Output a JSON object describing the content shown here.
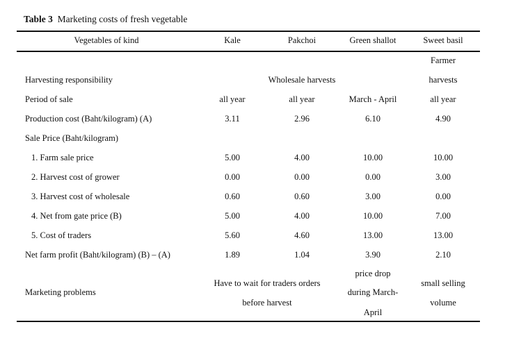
{
  "table": {
    "number": "Table 3",
    "caption": "Marketing costs of fresh vegetable",
    "header": [
      "Vegetables of kind",
      "Kale",
      "Pakchoi",
      "Green shallot",
      "Sweet basil"
    ],
    "harvesting": {
      "label": "Harvesting responsibility",
      "wholesale": "Wholesale harvests",
      "basil_line1": "Farmer",
      "basil_line2": "harvests"
    },
    "period": {
      "label": "Period of sale",
      "values": [
        "all year",
        "all year",
        "March - April",
        "all year"
      ]
    },
    "production": {
      "label": "Production cost (Baht/kilogram) (A)",
      "values": [
        "3.11",
        "2.96",
        "6.10",
        "4.90"
      ]
    },
    "sale_price_label": "Sale Price (Baht/kilogram)",
    "rows": [
      {
        "label": "1. Farm sale price",
        "values": [
          "5.00",
          "4.00",
          "10.00",
          "10.00"
        ]
      },
      {
        "label": "2. Harvest cost of grower",
        "values": [
          "0.00",
          "0.00",
          "0.00",
          "3.00"
        ]
      },
      {
        "label": "3. Harvest cost of wholesale",
        "values": [
          "0.60",
          "0.60",
          "3.00",
          "0.00"
        ]
      },
      {
        "label": "4. Net from gate price (B)",
        "values": [
          "5.00",
          "4.00",
          "10.00",
          "7.00"
        ]
      },
      {
        "label": "5. Cost of traders",
        "values": [
          "5.60",
          "4.60",
          "13.00",
          "13.00"
        ]
      },
      {
        "label": "Net farm profit (Baht/kilogram) (B) – (A)",
        "values": [
          "1.89",
          "1.04",
          "3.90",
          "2.10"
        ]
      }
    ],
    "problems": {
      "label": "Marketing problems",
      "kale_pakchoi": [
        "Have to wait for traders orders",
        "before harvest"
      ],
      "shallot": [
        "price drop",
        "during March-",
        "April"
      ],
      "basil": [
        "small selling",
        "volume"
      ]
    }
  }
}
